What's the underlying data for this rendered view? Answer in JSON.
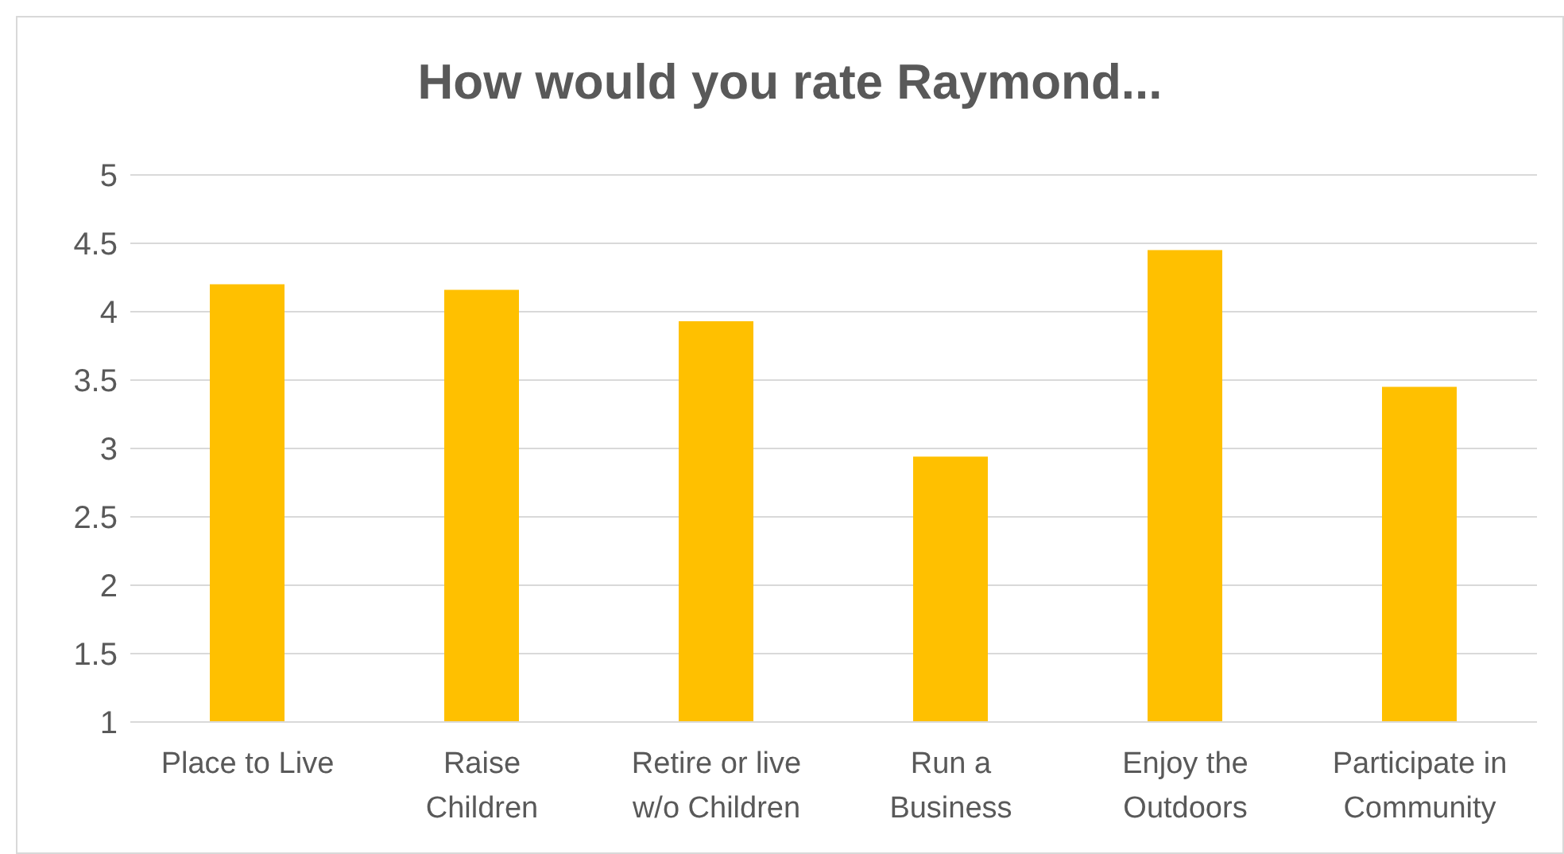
{
  "chart_data": {
    "type": "bar",
    "title": "How would you rate Raymond...",
    "categories": [
      "Place to Live",
      "Raise Children",
      "Retire or live w/o Children",
      "Run a Business",
      "Enjoy the Outdoors",
      "Participate in Community"
    ],
    "values": [
      4.2,
      4.16,
      3.93,
      2.94,
      4.45,
      3.45
    ],
    "color": "#ffc000",
    "ylim": [
      1,
      5
    ],
    "yticks": [
      1,
      1.5,
      2,
      2.5,
      3,
      3.5,
      4,
      4.5,
      5
    ],
    "grid": "y",
    "legend": false
  }
}
